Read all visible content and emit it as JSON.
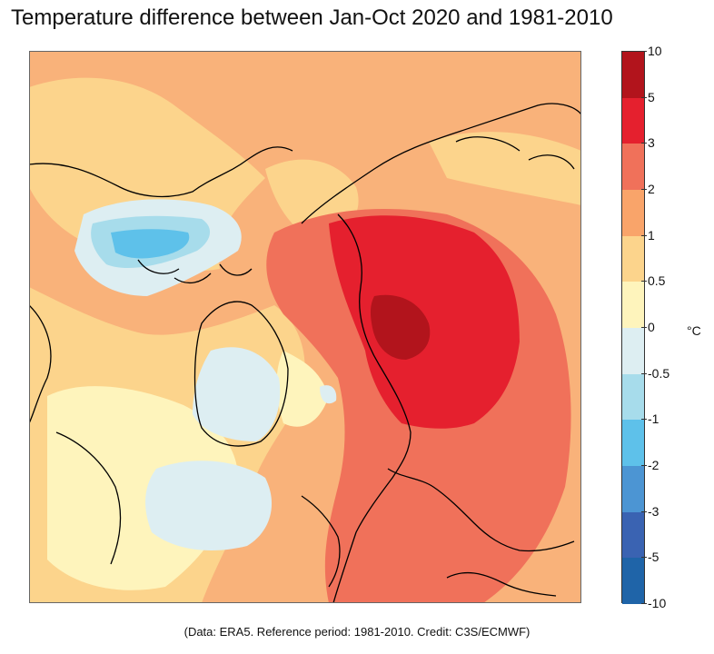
{
  "title": "Temperature difference between Jan-Oct 2020 and 1981-2010",
  "credit": "(Data: ERA5.  Reference period: 1981-2010.  Credit: C3S/ECMWF)",
  "colorbar": {
    "unit": "°C",
    "tick_labels": [
      "10",
      "5",
      "3",
      "2",
      "1",
      "0.5",
      "0",
      "-0.5",
      "-1",
      "-2",
      "-3",
      "-5",
      "-10"
    ],
    "bin_colors": [
      "#b2141c",
      "#e5202e",
      "#f0715a",
      "#f9a46a",
      "#fcd48c",
      "#fef4bc",
      "#ddeef2",
      "#a7dceb",
      "#5ec1ea",
      "#4c95d3",
      "#3a63b2",
      "#1f64a8"
    ]
  },
  "map": {
    "projection": "north polar stereographic",
    "coastline_color": "#000000"
  }
}
